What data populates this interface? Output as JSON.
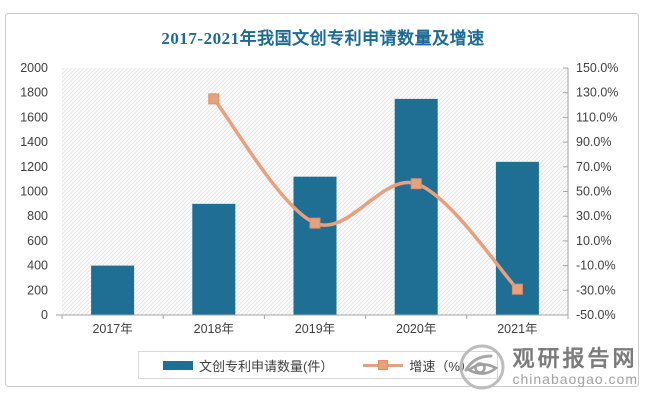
{
  "watermark": {
    "brand": "观研报告网",
    "domain": "chinabaogao.com"
  },
  "chart_data": {
    "type": "bar",
    "title": "2017-2021年我国文创专利申请数量及增速",
    "categories": [
      "2017年",
      "2018年",
      "2019年",
      "2020年",
      "2021年"
    ],
    "series": [
      {
        "name": "文创专利申请数量(件）",
        "type": "bar",
        "axis": "left",
        "values": [
          400,
          900,
          1120,
          1750,
          1240
        ],
        "color": "#1f6e93"
      },
      {
        "name": "增速（%）",
        "type": "line",
        "axis": "right",
        "values": [
          null,
          125.0,
          24.4,
          56.3,
          -29.1
        ],
        "color": "#e8a17e",
        "marker_border": "#dd8f66"
      }
    ],
    "left_axis": {
      "min": 0,
      "max": 2000,
      "step": 200,
      "ticks": [
        "2000",
        "1800",
        "1600",
        "1400",
        "1200",
        "1000",
        "800",
        "600",
        "400",
        "200",
        "0"
      ]
    },
    "right_axis": {
      "min": -50,
      "max": 150,
      "step": 20,
      "ticks": [
        "150.0%",
        "130.0%",
        "110.0%",
        "90.0%",
        "70.0%",
        "50.0%",
        "30.0%",
        "10.0%",
        "-10.0%",
        "-30.0%",
        "-50.0%"
      ]
    },
    "legend_position": "bottom",
    "grid": false,
    "plot_background": "diagonal-hatch",
    "axis_color": "#a6a6a6",
    "tick_text_color": "#404040"
  }
}
